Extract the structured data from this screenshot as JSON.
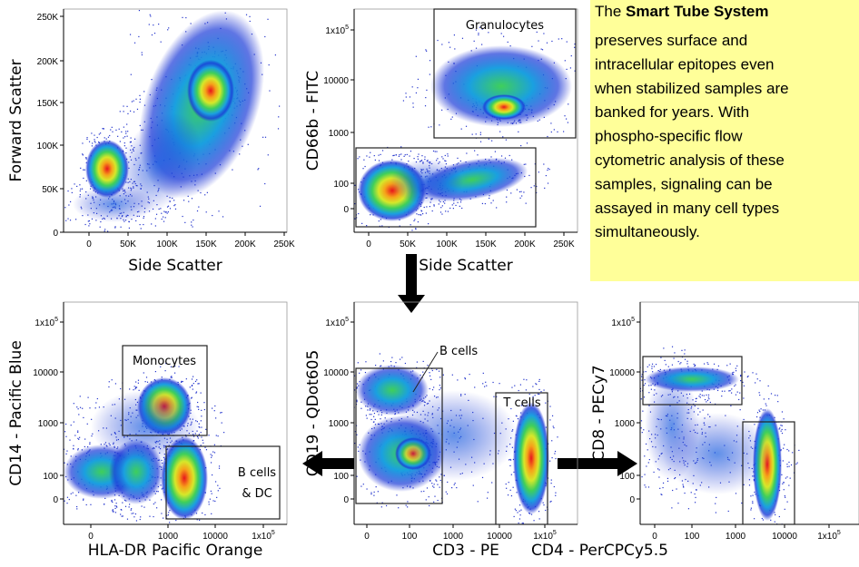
{
  "panels": [
    {
      "y_title": "Forward Scatter",
      "x_title": "Side Scatter",
      "x_ticks": [
        "0",
        "50K",
        "100K",
        "150K",
        "200K",
        "250K"
      ],
      "y_ticks": [
        "0",
        "50K",
        "100K",
        "150K",
        "200K",
        "250K"
      ],
      "gates": []
    },
    {
      "y_title": "CD66b - FITC",
      "x_title": "Side Scatter",
      "x_ticks": [
        "0",
        "50K",
        "100K",
        "150K",
        "200K",
        "250K"
      ],
      "y_ticks": [
        {
          "base": "1x10",
          "sup": "5"
        },
        "10000",
        "1000",
        "100",
        "0"
      ],
      "gates": [
        {
          "label": "Granulocytes"
        },
        {
          "label": null
        }
      ]
    },
    {
      "y_title": "CD14 - Pacific Blue",
      "x_title": "HLA-DR Pacific Orange",
      "x_ticks": [
        "0",
        "1000",
        "10000",
        {
          "base": "1x10",
          "sup": "5"
        }
      ],
      "y_ticks": [
        {
          "base": "1x10",
          "sup": "5"
        },
        "10000",
        "1000",
        "100",
        "0"
      ],
      "gates": [
        {
          "label": "Monocytes"
        },
        {
          "label": "B cells",
          "label2": "& DC"
        }
      ]
    },
    {
      "y_title": "CD19 - QDot605",
      "x_title": "CD3 - PE",
      "x_ticks": [
        "0",
        "100",
        "1000",
        "10000",
        {
          "base": "1x10",
          "sup": "5"
        }
      ],
      "y_ticks": [
        {
          "base": "1x10",
          "sup": "5"
        },
        "10000",
        "1000",
        "100",
        "0"
      ],
      "gates": [
        {
          "label": "B cells"
        },
        {
          "label": "T cells"
        }
      ]
    },
    {
      "y_title": "CD8 - PECy7",
      "x_title": "CD4 - PerCPCy5.5",
      "x_ticks": [
        "0",
        "100",
        "1000",
        "10000",
        {
          "base": "1x10",
          "sup": "5"
        }
      ],
      "y_ticks": [
        {
          "base": "1x10",
          "sup": "5"
        },
        "10000",
        "1000",
        "100",
        "0"
      ],
      "gates": [
        {
          "label": null
        },
        {
          "label": null
        }
      ]
    }
  ],
  "note": {
    "lead": "The ",
    "bold": "Smart Tube System",
    "lines": [
      "preserves surface and",
      "intracellular epitopes even",
      "when stabilized samples are",
      "banked for years. With",
      "phospho-specific flow",
      "cytometric analysis of these",
      "samples, signaling can be",
      "assayed in many cell types",
      "simultaneously."
    ]
  }
}
